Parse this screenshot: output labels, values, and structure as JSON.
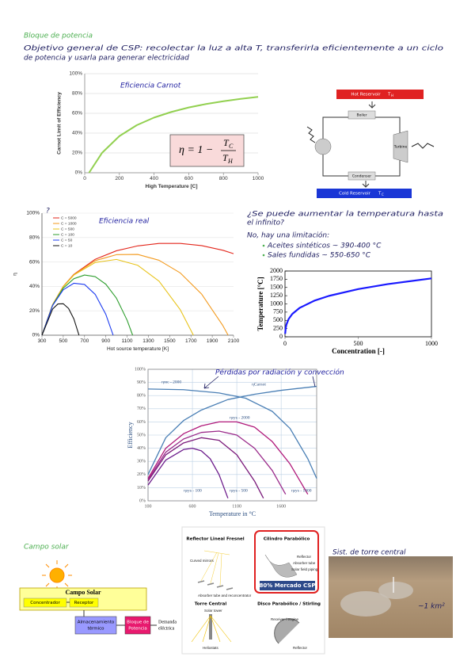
{
  "header": {
    "title": "Bloque de potencia",
    "objective": [
      "Objetivo general de CSP: recolectar la luz a alta T, transferirla eficientemente a un ciclo",
      "de potencia y usarla para generar electricidad"
    ]
  },
  "carnot_chart": {
    "type": "line",
    "annotation": "Eficiencia Carnot",
    "formula": {
      "lhs": "η = 1 −",
      "numerator": "T",
      "numerator_sub": "C",
      "denominator": "T",
      "denominator_sub": "H"
    },
    "xlabel": "High Temperature [C]",
    "ylabel": "Carnot Limit of Efficiency",
    "xlim": [
      0,
      1000
    ],
    "xticks": [
      0,
      200,
      400,
      600,
      800,
      1000
    ],
    "ylim": [
      0,
      100
    ],
    "yticks": [
      {
        "value": 0,
        "label": "0%"
      },
      {
        "value": 20,
        "label": "20%"
      },
      {
        "value": 40,
        "label": "40%"
      },
      {
        "value": 60,
        "label": "60%"
      },
      {
        "value": 80,
        "label": "80%"
      },
      {
        "value": 100,
        "label": "100%"
      }
    ],
    "grid": true,
    "series": [
      {
        "color": "#92d050",
        "x": [
          25,
          100,
          200,
          300,
          400,
          500,
          600,
          700,
          800,
          900,
          1000
        ],
        "values": [
          0,
          20.1,
          37.0,
          48.0,
          55.7,
          61.4,
          65.9,
          69.4,
          72.2,
          74.6,
          76.6
        ]
      }
    ]
  },
  "cycle_diagram": {
    "hot_reservoir": "Hot Reservoir",
    "hot_temp": "T",
    "hot_sub": "H",
    "cold_reservoir": "Cold Reservoir",
    "cold_temp": "T",
    "cold_sub": "C",
    "boiler": "Boiler",
    "turbine": "Turbine",
    "condenser": "Condenser"
  },
  "real_chart": {
    "type": "line",
    "annotation": "Eficiencia real",
    "xlabel": "Hot source temperature [K]",
    "ylabel": "η",
    "xlim": [
      300,
      2100
    ],
    "xticks": [
      300,
      500,
      700,
      900,
      1100,
      1300,
      1500,
      1700,
      1900,
      2100
    ],
    "ylim": [
      0,
      100
    ],
    "yticks": [
      {
        "value": 0,
        "label": "0%"
      },
      {
        "value": 20,
        "label": "20%"
      },
      {
        "value": 40,
        "label": "40%"
      },
      {
        "value": 60,
        "label": "60%"
      },
      {
        "value": 80,
        "label": "80%"
      },
      {
        "value": 100,
        "label": "100%"
      }
    ],
    "grid": true,
    "legend": "top-left",
    "series": [
      {
        "name": "C = 5000",
        "color": "#e3261b",
        "x": [
          300,
          400,
          500,
          600,
          800,
          1000,
          1200,
          1400,
          1600,
          1800,
          2000,
          2100
        ],
        "values": [
          0,
          25,
          40,
          49.9,
          62.2,
          69.2,
          73.2,
          75.2,
          75.2,
          73.4,
          69.6,
          66.8
        ]
      },
      {
        "name": "C = 1000",
        "color": "#f39a1e",
        "x": [
          300,
          400,
          500,
          600,
          800,
          1000,
          1200,
          1400,
          1600,
          1800,
          2000,
          2049
        ],
        "values": [
          0,
          25,
          39.9,
          49.6,
          61.1,
          66,
          66.2,
          61.4,
          51,
          33.7,
          7.8,
          0
        ]
      },
      {
        "name": "C = 500",
        "color": "#e8c31a",
        "x": [
          300,
          400,
          500,
          600,
          800,
          1000,
          1200,
          1400,
          1600,
          1723
        ],
        "values": [
          0,
          24.9,
          39.7,
          49.3,
          59.6,
          62.1,
          57.3,
          44.3,
          20.8,
          0
        ]
      },
      {
        "name": "C = 100",
        "color": "#2e9e2e",
        "x": [
          300,
          400,
          500,
          600,
          700,
          800,
          900,
          1000,
          1100,
          1152
        ],
        "values": [
          0,
          24.6,
          38.6,
          46.3,
          49.3,
          48,
          41.8,
          30.3,
          12.3,
          0
        ]
      },
      {
        "name": "C = 50",
        "color": "#1c3cf0",
        "x": [
          300,
          400,
          500,
          600,
          700,
          800,
          900,
          969
        ],
        "values": [
          0,
          24.3,
          37.2,
          42.6,
          41.6,
          33.5,
          17.1,
          0
        ]
      },
      {
        "name": "C = 10",
        "color": "#111111",
        "x": [
          300,
          400,
          450,
          500,
          550,
          600,
          648
        ],
        "values": [
          0,
          21.4,
          25.6,
          25.8,
          21.9,
          13.3,
          0
        ]
      }
    ]
  },
  "notes": {
    "question_mark": "?",
    "question": [
      "¿Se puede aumentar la temperatura hasta",
      "el infinito?"
    ],
    "answer": "No, hay una limitación:",
    "bullets": [
      "Aceites sintéticos ~ 390-400 °C",
      "Sales fundidas ~ 550-650 °C"
    ]
  },
  "concentration_chart": {
    "type": "line",
    "xlabel": "Concentration [-]",
    "ylabel": "Temperature [°C]",
    "xlim": [
      0,
      1000
    ],
    "xticks": [
      0,
      500,
      1000
    ],
    "ylim": [
      0,
      2000
    ],
    "yticks": [
      0,
      250,
      500,
      750,
      1000,
      1250,
      1500,
      1750,
      2000
    ],
    "grid": false,
    "series": [
      {
        "color": "#1a1aff",
        "x": [
          1,
          5,
          10,
          25,
          50,
          100,
          200,
          300,
          500,
          700,
          1000
        ],
        "values": [
          91,
          272,
          375,
          542,
          696,
          879,
          1097,
          1244,
          1450,
          1601,
          1776
        ]
      }
    ]
  },
  "losses_chart": {
    "type": "line",
    "annotation": "Pérdidas por radiación y convección",
    "xlabel": "Temperature in °C",
    "ylabel": "Efficiency",
    "xlim": [
      100,
      2000
    ],
    "xticks": [
      100,
      600,
      1100,
      1600
    ],
    "ylim": [
      0,
      100
    ],
    "yticks": [
      {
        "value": 0,
        "label": "0%"
      },
      {
        "value": 10,
        "label": "10%"
      },
      {
        "value": 20,
        "label": "20%"
      },
      {
        "value": 30,
        "label": "30%"
      },
      {
        "value": 40,
        "label": "40%"
      },
      {
        "value": 50,
        "label": "50%"
      },
      {
        "value": 60,
        "label": "60%"
      },
      {
        "value": 70,
        "label": "70%"
      },
      {
        "value": 80,
        "label": "80%"
      },
      {
        "value": 90,
        "label": "90%"
      },
      {
        "value": 100,
        "label": "100%"
      }
    ],
    "grid": true,
    "series": [
      {
        "name": "ηrec - 2000",
        "color": "#4a7fb5",
        "x": [
          100,
          500,
          900,
          1200,
          1500,
          1700,
          1900,
          2000
        ],
        "values": [
          85,
          84.5,
          82,
          78,
          68,
          55,
          32,
          17
        ]
      },
      {
        "name": "ηCarnot",
        "color": "#4a7fb5",
        "x": [
          100,
          300,
          500,
          700,
          1000,
          1300,
          1600,
          2000
        ],
        "values": [
          20,
          48,
          61,
          69,
          77,
          81,
          84,
          87
        ]
      },
      {
        "name": "ηsys - 2000",
        "color": "#b0187a",
        "x": [
          100,
          300,
          500,
          700,
          900,
          1100,
          1300,
          1500,
          1700,
          1900
        ],
        "values": [
          17,
          40,
          51,
          57,
          60,
          60,
          56,
          45,
          28,
          5
        ]
      },
      {
        "name": "ηsys - 100",
        "color": "#6d1d8c",
        "x": [
          100,
          300,
          500,
          600,
          700,
          800,
          900,
          1000
        ],
        "values": [
          12,
          31,
          39,
          40,
          38,
          32,
          20,
          2
        ]
      },
      {
        "name": "ηsys - 500",
        "color": "#7a1a7a",
        "x": [
          100,
          300,
          500,
          700,
          900,
          1100,
          1300,
          1400
        ],
        "values": [
          15,
          35,
          44,
          48,
          46,
          35,
          15,
          2
        ]
      },
      {
        "name": "ηsys - 1000",
        "color": "#9a2a8a",
        "x": [
          100,
          300,
          500,
          700,
          900,
          1100,
          1300,
          1500,
          1650
        ],
        "values": [
          16,
          37,
          47,
          52,
          53,
          50,
          40,
          23,
          5
        ]
      }
    ]
  },
  "solar_field": {
    "title": "Campo solar",
    "diagram": {
      "field": "Campo Solar",
      "concentrator": "Concentrador",
      "receiver": "Receptor",
      "storage": [
        "Almacenamiento",
        "térmico"
      ],
      "power_block": [
        "Bloque de",
        "Potencia"
      ],
      "demand": [
        "Demanda",
        "eléctrica"
      ]
    },
    "technologies": {
      "fresnel": {
        "title": "Reflector Lineal Fresnel",
        "labels": [
          "Curved mirrors",
          "Absorber tube and reconcentrator"
        ]
      },
      "trough": {
        "title": "Cilindro Parabólico",
        "labels": [
          "Reflector",
          "Absorber tube",
          "Solar field piping"
        ],
        "share": "80% Mercado CSP"
      },
      "tower": {
        "title": "Torre Central",
        "labels": [
          "Solar tower",
          "Heliostats"
        ]
      },
      "dish": {
        "title": "Disco Parabólico / Stirling",
        "labels": [
          "Receiver / engine",
          "Reflector"
        ]
      }
    },
    "tower_note": "Sist. de torre central",
    "area": "~1 km²"
  }
}
